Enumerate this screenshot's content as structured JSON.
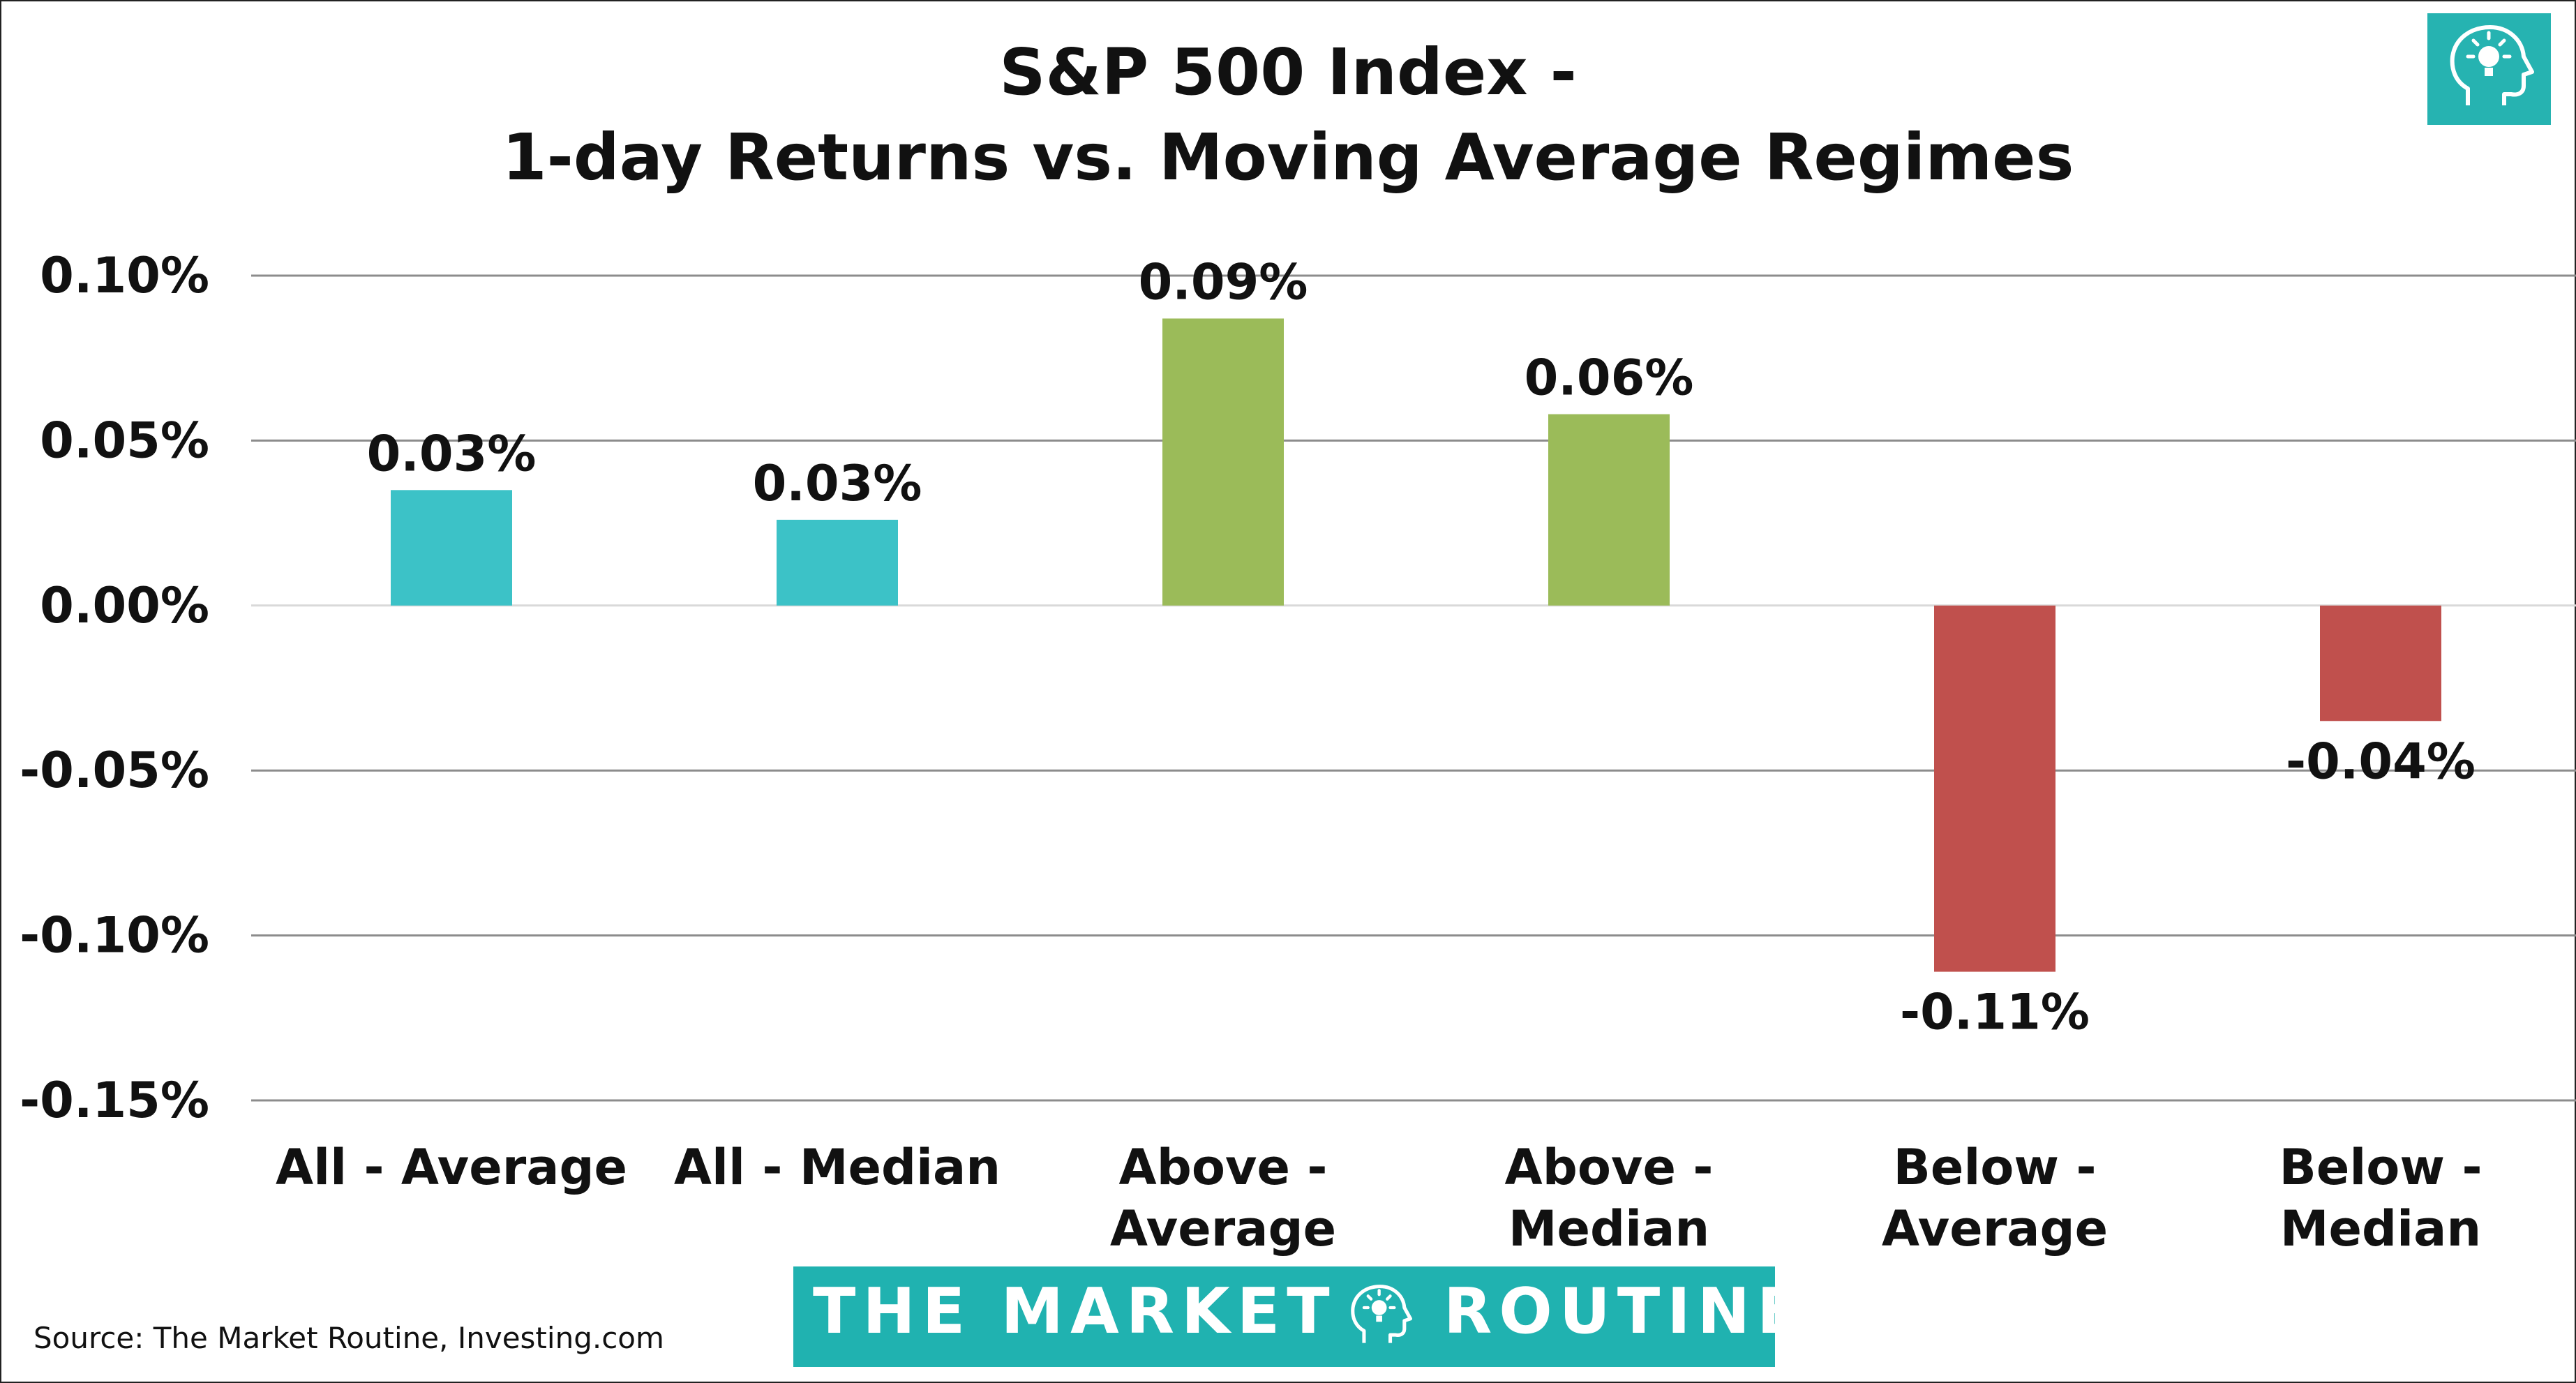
{
  "title_line1": "S&P 500 Index -",
  "title_line2": "1-day Returns vs. Moving Average Regimes",
  "source": "Source: The Market Routine, Investing.com",
  "brand": {
    "left": "THE MARKET",
    "right": "ROUTINE",
    "color": "#20b2b0"
  },
  "icons": {
    "corner": "head-lightbulb-icon",
    "banner": "head-lightbulb-icon"
  },
  "chart_data": {
    "type": "bar",
    "categories": [
      [
        "All - Average"
      ],
      [
        "All - Median"
      ],
      [
        "Above -",
        "Average"
      ],
      [
        "Above -",
        "Median"
      ],
      [
        "Below -",
        "Average"
      ],
      [
        "Below -",
        "Median"
      ]
    ],
    "values": [
      0.035,
      0.026,
      0.087,
      0.058,
      -0.111,
      -0.035
    ],
    "data_labels": [
      "0.03%",
      "0.03%",
      "0.09%",
      "0.06%",
      "-0.11%",
      "-0.04%"
    ],
    "colors": [
      "#3cc2c7",
      "#3cc2c7",
      "#9bbb59",
      "#9bbb59",
      "#c0504d",
      "#c0504d"
    ],
    "y_ticks": [
      0.1,
      0.05,
      0.0,
      -0.05,
      -0.1,
      -0.15
    ],
    "y_tick_labels": [
      "0.10%",
      "0.05%",
      "0.00%",
      "-0.05%",
      "-0.10%",
      "-0.15%"
    ],
    "ylim": [
      -0.15,
      0.1
    ],
    "grid": true,
    "legend": "none"
  }
}
